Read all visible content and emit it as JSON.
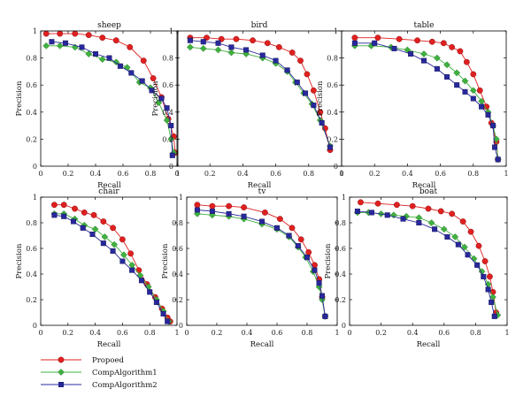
{
  "chart_data": [
    {
      "type": "line",
      "title": "sheep",
      "xlabel": "Recall",
      "ylabel": "Precision",
      "xlim": [
        0,
        1
      ],
      "ylim": [
        0,
        1
      ],
      "xticks": [
        "0",
        "0.2",
        "0.4",
        "0.6",
        "0.8",
        "1"
      ],
      "yticks": [
        "0",
        "0.2",
        "0.4",
        "0.6",
        "0.8",
        "1"
      ],
      "grid": false,
      "series": [
        {
          "name": "Propoed",
          "x": [
            0.04,
            0.14,
            0.25,
            0.35,
            0.45,
            0.55,
            0.65,
            0.75,
            0.82,
            0.88,
            0.93,
            0.97,
            0.98
          ],
          "y": [
            0.98,
            0.98,
            0.98,
            0.97,
            0.95,
            0.93,
            0.88,
            0.78,
            0.65,
            0.51,
            0.35,
            0.22,
            0.1
          ]
        },
        {
          "name": "CompAlgorithm1",
          "x": [
            0.04,
            0.14,
            0.25,
            0.35,
            0.45,
            0.55,
            0.63,
            0.72,
            0.8,
            0.86,
            0.92,
            0.95,
            0.97
          ],
          "y": [
            0.89,
            0.89,
            0.88,
            0.83,
            0.79,
            0.77,
            0.73,
            0.62,
            0.58,
            0.47,
            0.34,
            0.2,
            0.1
          ]
        },
        {
          "name": "CompAlgorithm2",
          "x": [
            0.08,
            0.18,
            0.3,
            0.4,
            0.5,
            0.58,
            0.66,
            0.74,
            0.81,
            0.88,
            0.92,
            0.95,
            0.96
          ],
          "y": [
            0.92,
            0.91,
            0.88,
            0.83,
            0.8,
            0.74,
            0.69,
            0.63,
            0.56,
            0.5,
            0.43,
            0.3,
            0.08
          ]
        }
      ]
    },
    {
      "type": "line",
      "title": "bird",
      "xlabel": "Recall",
      "ylabel": "Precision",
      "xlim": [
        0,
        1
      ],
      "ylim": [
        0,
        1
      ],
      "xticks": [
        "0",
        "0.2",
        "0.4",
        "0.6",
        "0.8",
        "1"
      ],
      "yticks": [
        "0",
        "0.2",
        "0.4",
        "0.6",
        "0.8",
        "1"
      ],
      "grid": false,
      "series": [
        {
          "name": "Propoed",
          "x": [
            0.08,
            0.18,
            0.27,
            0.36,
            0.46,
            0.55,
            0.62,
            0.7,
            0.75,
            0.79,
            0.83,
            0.87,
            0.9,
            0.93
          ],
          "y": [
            0.95,
            0.95,
            0.94,
            0.94,
            0.93,
            0.91,
            0.88,
            0.84,
            0.78,
            0.68,
            0.56,
            0.4,
            0.28,
            0.12
          ]
        },
        {
          "name": "CompAlgorithm1",
          "x": [
            0.08,
            0.16,
            0.25,
            0.33,
            0.42,
            0.52,
            0.6,
            0.67,
            0.72,
            0.77,
            0.82,
            0.87,
            0.93
          ],
          "y": [
            0.88,
            0.87,
            0.86,
            0.84,
            0.83,
            0.8,
            0.76,
            0.7,
            0.62,
            0.54,
            0.46,
            0.34,
            0.15
          ]
        },
        {
          "name": "CompAlgorithm2",
          "x": [
            0.08,
            0.16,
            0.25,
            0.33,
            0.42,
            0.52,
            0.6,
            0.67,
            0.73,
            0.78,
            0.83,
            0.88,
            0.93
          ],
          "y": [
            0.93,
            0.92,
            0.91,
            0.88,
            0.86,
            0.82,
            0.78,
            0.71,
            0.62,
            0.54,
            0.45,
            0.32,
            0.14
          ]
        }
      ]
    },
    {
      "type": "line",
      "title": "table",
      "xlabel": "Recall",
      "ylabel": "Precision",
      "xlim": [
        0,
        1
      ],
      "ylim": [
        0,
        1
      ],
      "xticks": [
        "0",
        "0.2",
        "0.4",
        "0.6",
        "0.8",
        "1"
      ],
      "yticks": [
        "0",
        "0.2",
        "0.4",
        "0.6",
        "0.8",
        "1"
      ],
      "grid": false,
      "series": [
        {
          "name": "Propoed",
          "x": [
            0.08,
            0.22,
            0.35,
            0.46,
            0.55,
            0.62,
            0.67,
            0.72,
            0.76,
            0.8,
            0.84,
            0.88,
            0.91,
            0.94,
            0.95
          ],
          "y": [
            0.95,
            0.95,
            0.94,
            0.93,
            0.92,
            0.91,
            0.88,
            0.85,
            0.77,
            0.68,
            0.56,
            0.44,
            0.32,
            0.18,
            0.05
          ]
        },
        {
          "name": "CompAlgorithm1",
          "x": [
            0.08,
            0.18,
            0.3,
            0.4,
            0.5,
            0.58,
            0.64,
            0.7,
            0.75,
            0.8,
            0.85,
            0.89,
            0.92,
            0.94,
            0.95
          ],
          "y": [
            0.89,
            0.89,
            0.88,
            0.86,
            0.83,
            0.8,
            0.75,
            0.69,
            0.63,
            0.56,
            0.48,
            0.4,
            0.3,
            0.2,
            0.05
          ]
        },
        {
          "name": "CompAlgorithm2",
          "x": [
            0.08,
            0.2,
            0.32,
            0.42,
            0.5,
            0.58,
            0.64,
            0.7,
            0.75,
            0.8,
            0.85,
            0.89,
            0.92,
            0.93,
            0.95
          ],
          "y": [
            0.91,
            0.91,
            0.87,
            0.83,
            0.78,
            0.72,
            0.66,
            0.6,
            0.55,
            0.5,
            0.44,
            0.38,
            0.3,
            0.14,
            0.05
          ]
        }
      ]
    },
    {
      "type": "line",
      "title": "chair",
      "xlabel": "Recall",
      "ylabel": "Precision",
      "xlim": [
        0,
        1
      ],
      "ylim": [
        0,
        1
      ],
      "xticks": [
        "0",
        "0.2",
        "0.4",
        "0.6",
        "0.8",
        "1"
      ],
      "yticks": [
        "0",
        "0.2",
        "0.4",
        "0.6",
        "0.8",
        "1"
      ],
      "grid": false,
      "series": [
        {
          "name": "Propoed",
          "x": [
            0.1,
            0.17,
            0.25,
            0.32,
            0.39,
            0.46,
            0.53,
            0.6,
            0.66,
            0.72,
            0.78,
            0.84,
            0.89,
            0.93,
            0.95
          ],
          "y": [
            0.94,
            0.94,
            0.91,
            0.88,
            0.86,
            0.81,
            0.76,
            0.67,
            0.56,
            0.43,
            0.32,
            0.22,
            0.13,
            0.06,
            0.03
          ]
        },
        {
          "name": "CompAlgorithm1",
          "x": [
            0.1,
            0.17,
            0.25,
            0.32,
            0.4,
            0.47,
            0.54,
            0.61,
            0.67,
            0.73,
            0.79,
            0.85,
            0.9,
            0.94
          ],
          "y": [
            0.87,
            0.87,
            0.83,
            0.78,
            0.75,
            0.69,
            0.63,
            0.55,
            0.47,
            0.39,
            0.3,
            0.2,
            0.11,
            0.03
          ]
        },
        {
          "name": "CompAlgorithm2",
          "x": [
            0.1,
            0.17,
            0.24,
            0.31,
            0.38,
            0.46,
            0.53,
            0.6,
            0.67,
            0.74,
            0.8,
            0.85,
            0.9,
            0.93
          ],
          "y": [
            0.86,
            0.85,
            0.81,
            0.76,
            0.71,
            0.64,
            0.58,
            0.5,
            0.43,
            0.35,
            0.26,
            0.18,
            0.09,
            0.03
          ]
        }
      ]
    },
    {
      "type": "line",
      "title": "tv",
      "xlabel": "Recall",
      "ylabel": "Precision",
      "xlim": [
        0,
        1
      ],
      "ylim": [
        0,
        1
      ],
      "xticks": [
        "0",
        "0.2",
        "0.4",
        "0.6",
        "0.8",
        "1"
      ],
      "yticks": [
        "0",
        "0.2",
        "0.4",
        "0.6",
        "0.8",
        "1"
      ],
      "grid": false,
      "series": [
        {
          "name": "Propoed",
          "x": [
            0.07,
            0.17,
            0.28,
            0.38,
            0.52,
            0.62,
            0.7,
            0.76,
            0.81,
            0.85,
            0.88,
            0.9,
            0.92
          ],
          "y": [
            0.94,
            0.93,
            0.93,
            0.92,
            0.88,
            0.83,
            0.76,
            0.67,
            0.57,
            0.47,
            0.36,
            0.22,
            0.07
          ]
        },
        {
          "name": "CompAlgorithm1",
          "x": [
            0.07,
            0.17,
            0.28,
            0.38,
            0.5,
            0.6,
            0.68,
            0.74,
            0.79,
            0.84,
            0.88,
            0.9,
            0.92
          ],
          "y": [
            0.87,
            0.86,
            0.85,
            0.83,
            0.79,
            0.75,
            0.69,
            0.61,
            0.53,
            0.42,
            0.3,
            0.2,
            0.07
          ]
        },
        {
          "name": "CompAlgorithm2",
          "x": [
            0.07,
            0.17,
            0.28,
            0.38,
            0.5,
            0.6,
            0.68,
            0.74,
            0.8,
            0.85,
            0.88,
            0.9,
            0.92
          ],
          "y": [
            0.9,
            0.89,
            0.87,
            0.85,
            0.81,
            0.76,
            0.7,
            0.62,
            0.53,
            0.43,
            0.33,
            0.23,
            0.07
          ]
        }
      ]
    },
    {
      "type": "line",
      "title": "boat",
      "xlabel": "Recall",
      "ylabel": "Precision",
      "xlim": [
        0,
        1
      ],
      "ylim": [
        0,
        1
      ],
      "xticks": [
        "0",
        "0.2",
        "0.4",
        "0.6",
        "0.8",
        "1"
      ],
      "yticks": [
        "0",
        "0.2",
        "0.4",
        "0.6",
        "0.8",
        "1"
      ],
      "grid": false,
      "series": [
        {
          "name": "Propoed",
          "x": [
            0.07,
            0.18,
            0.3,
            0.4,
            0.5,
            0.58,
            0.65,
            0.72,
            0.77,
            0.82,
            0.86,
            0.89,
            0.91,
            0.93
          ],
          "y": [
            0.96,
            0.95,
            0.94,
            0.93,
            0.91,
            0.89,
            0.87,
            0.81,
            0.73,
            0.62,
            0.5,
            0.38,
            0.26,
            0.1
          ]
        },
        {
          "name": "CompAlgorithm1",
          "x": [
            0.05,
            0.12,
            0.2,
            0.28,
            0.36,
            0.44,
            0.52,
            0.6,
            0.67,
            0.73,
            0.79,
            0.84,
            0.88,
            0.91,
            0.94
          ],
          "y": [
            0.88,
            0.88,
            0.87,
            0.86,
            0.85,
            0.84,
            0.8,
            0.75,
            0.69,
            0.61,
            0.52,
            0.42,
            0.32,
            0.22,
            0.08
          ]
        },
        {
          "name": "CompAlgorithm2",
          "x": [
            0.05,
            0.14,
            0.24,
            0.34,
            0.44,
            0.54,
            0.62,
            0.69,
            0.75,
            0.81,
            0.85,
            0.88,
            0.9,
            0.92
          ],
          "y": [
            0.89,
            0.88,
            0.86,
            0.83,
            0.8,
            0.75,
            0.69,
            0.63,
            0.55,
            0.47,
            0.38,
            0.28,
            0.18,
            0.07
          ]
        }
      ]
    }
  ],
  "legend": {
    "entries": [
      {
        "label": "Propoed",
        "color": "#e02020",
        "marker": "circle"
      },
      {
        "label": "CompAlgorithm1",
        "color": "#3fb13f",
        "marker": "diamond"
      },
      {
        "label": "CompAlgorithm2",
        "color": "#28289c",
        "marker": "square"
      }
    ],
    "placement": "bottom-left"
  },
  "colors": {
    "Propoed": "#e02020",
    "CompAlgorithm1": "#3fb13f",
    "CompAlgorithm2": "#28289c"
  }
}
